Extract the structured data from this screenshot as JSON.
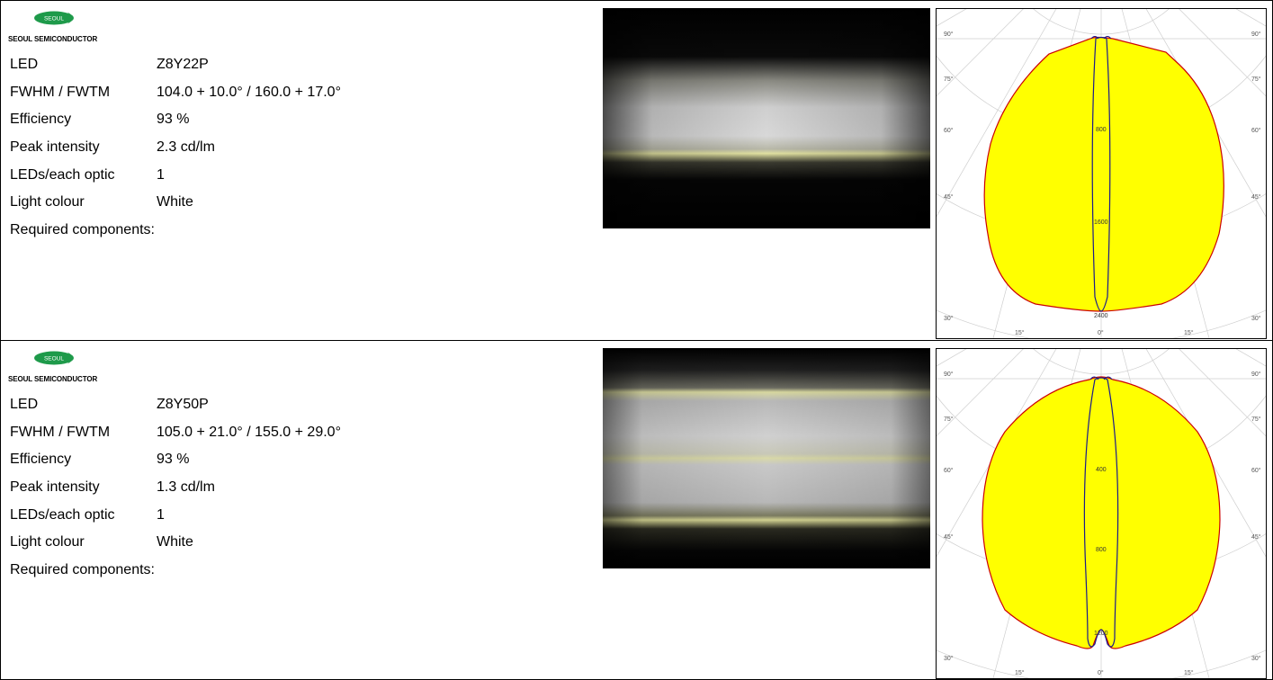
{
  "brand": {
    "oval_text": "SEOUL",
    "name": "SEOUL SEMICONDUCTOR"
  },
  "colors": {
    "brand_green": "#1e9a4a",
    "distribution_fill": "#ffff00",
    "outline_red": "#cc0000",
    "outline_blue": "#1a1a8c"
  },
  "entries": [
    {
      "specs": [
        {
          "label": "LED",
          "value": "Z8Y22P"
        },
        {
          "label": "FWHM / FWTM",
          "value": "104.0 + 10.0° / 160.0 + 17.0°"
        },
        {
          "label": "Efficiency",
          "value": "93 %"
        },
        {
          "label": "Peak intensity",
          "value": "2.3 cd/lm"
        },
        {
          "label": "LEDs/each optic",
          "value": "1"
        },
        {
          "label": "Light colour",
          "value": "White"
        },
        {
          "label": "Required components:",
          "value": ""
        }
      ],
      "polar": {
        "left_labels": [
          "90°",
          "75°",
          "60°",
          "45°",
          "30°"
        ],
        "right_labels": [
          "90°",
          "75°",
          "60°",
          "45°",
          "30°"
        ],
        "bottom_labels": [
          "15°",
          "0°",
          "15°"
        ],
        "ring_values": [
          "800",
          "1600",
          "2400"
        ]
      }
    },
    {
      "specs": [
        {
          "label": "LED",
          "value": "Z8Y50P"
        },
        {
          "label": "FWHM / FWTM",
          "value": "105.0 + 21.0° / 155.0 + 29.0°"
        },
        {
          "label": "Efficiency",
          "value": "93 %"
        },
        {
          "label": "Peak intensity",
          "value": "1.3 cd/lm"
        },
        {
          "label": "LEDs/each optic",
          "value": "1"
        },
        {
          "label": "Light colour",
          "value": "White"
        },
        {
          "label": "Required components:",
          "value": ""
        }
      ],
      "polar": {
        "left_labels": [
          "90°",
          "75°",
          "60°",
          "45°",
          "30°"
        ],
        "right_labels": [
          "90°",
          "75°",
          "60°",
          "45°",
          "30°"
        ],
        "bottom_labels": [
          "15°",
          "0°",
          "15°"
        ],
        "ring_values": [
          "400",
          "800",
          "1200"
        ]
      }
    }
  ]
}
